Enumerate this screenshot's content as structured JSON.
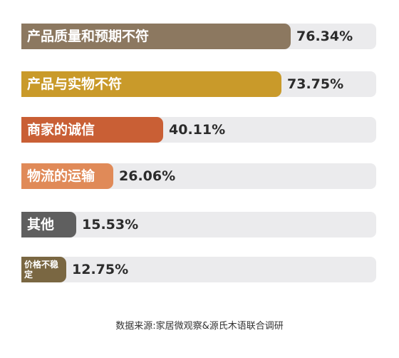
{
  "chart_data": {
    "type": "bar",
    "orientation": "horizontal",
    "categories": [
      "产品质量和预期不符",
      "产品与实物不符",
      "商家的诚信",
      "物流的运输",
      "其他",
      "价格不稳定"
    ],
    "values": [
      76.34,
      73.75,
      40.11,
      26.06,
      15.53,
      12.75
    ],
    "value_labels": [
      "76.34%",
      "73.75%",
      "40.11%",
      "26.06%",
      "15.53%",
      "12.75%"
    ],
    "colors": [
      "#8c7860",
      "#c99a2a",
      "#c95f35",
      "#e08a58",
      "#5f5f5f",
      "#7a6742"
    ],
    "xlim": [
      0,
      100
    ],
    "grid": false,
    "legend": "none"
  },
  "source": "数据来源:家居微观察&源氏木语联合调研"
}
